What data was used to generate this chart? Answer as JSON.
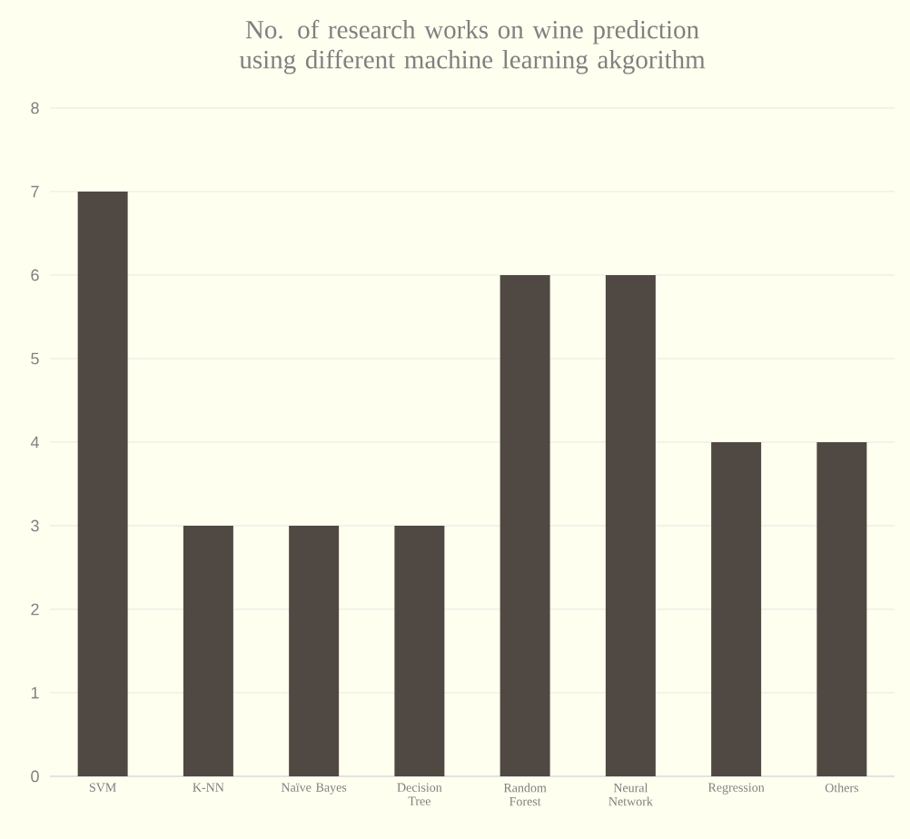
{
  "chart_data": {
    "type": "bar",
    "title": "No. of research works on wine prediction using different machine learning akgorithm",
    "categories": [
      "SVM",
      "K-NN",
      "Naïve Bayes",
      "Decision Tree",
      "Random Forest",
      "Neural Network",
      "Regression",
      "Others"
    ],
    "values": [
      7,
      3,
      3,
      3,
      6,
      6,
      4,
      4
    ],
    "color": "#504842",
    "ylim": [
      0,
      8
    ],
    "yticks": [
      0,
      1,
      2,
      3,
      4,
      5,
      6,
      7,
      8
    ],
    "grid": "y"
  }
}
